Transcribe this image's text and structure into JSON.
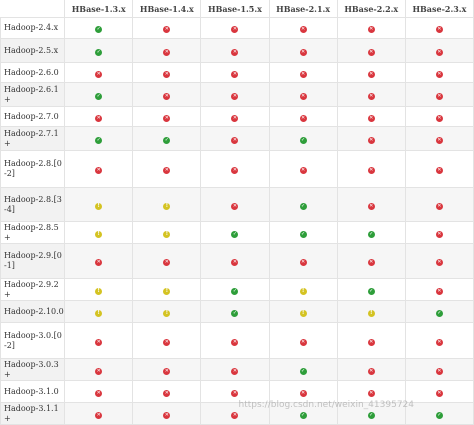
{
  "colors": {
    "supported": "#2e9e3a",
    "not_supported": "#d9363e",
    "not_tested": "#d4c322"
  },
  "status_icons": {
    "S": "check-circle-icon",
    "X": "x-circle-icon",
    "NT": "exclamation-circle-icon"
  },
  "header": [
    "",
    "HBase-1.3.x",
    "HBase-1.4.x",
    "HBase-1.5.x",
    "HBase-2.1.x",
    "HBase-2.2.x",
    "HBase-2.3.x"
  ],
  "rows": [
    {
      "label": "Hadoop-2.4.x",
      "cells": [
        "S",
        "X",
        "X",
        "X",
        "X",
        "X"
      ]
    },
    {
      "label": "Hadoop-2.5.x",
      "cells": [
        "S",
        "X",
        "X",
        "X",
        "X",
        "X"
      ]
    },
    {
      "label": "Hadoop-2.6.0",
      "cells": [
        "X",
        "X",
        "X",
        "X",
        "X",
        "X"
      ]
    },
    {
      "label": "Hadoop-2.6.1+",
      "cells": [
        "S",
        "X",
        "X",
        "X",
        "X",
        "X"
      ]
    },
    {
      "label": "Hadoop-2.7.0",
      "cells": [
        "X",
        "X",
        "X",
        "X",
        "X",
        "X"
      ]
    },
    {
      "label": "Hadoop-2.7.1+",
      "cells": [
        "S",
        "S",
        "X",
        "S",
        "X",
        "X"
      ]
    },
    {
      "label": "Hadoop-2.8.[0-2]",
      "cells": [
        "X",
        "X",
        "X",
        "X",
        "X",
        "X"
      ]
    },
    {
      "label": "Hadoop-2.8.[3-4]",
      "cells": [
        "NT",
        "NT",
        "X",
        "S",
        "X",
        "X"
      ]
    },
    {
      "label": "Hadoop-2.8.5+",
      "cells": [
        "NT",
        "NT",
        "S",
        "S",
        "S",
        "X"
      ]
    },
    {
      "label": "Hadoop-2.9.[0-1]",
      "cells": [
        "X",
        "X",
        "X",
        "X",
        "X",
        "X"
      ]
    },
    {
      "label": "Hadoop-2.9.2+",
      "cells": [
        "NT",
        "NT",
        "S",
        "NT",
        "S",
        "X"
      ]
    },
    {
      "label": "Hadoop-2.10.0",
      "cells": [
        "NT",
        "NT",
        "S",
        "NT",
        "NT",
        "S"
      ]
    },
    {
      "label": "Hadoop-3.0.[0-2]",
      "cells": [
        "X",
        "X",
        "X",
        "X",
        "X",
        "X"
      ]
    },
    {
      "label": "Hadoop-3.0.3+",
      "cells": [
        "X",
        "X",
        "X",
        "S",
        "X",
        "X"
      ]
    },
    {
      "label": "Hadoop-3.1.0",
      "cells": [
        "X",
        "X",
        "X",
        "X",
        "X",
        "X"
      ]
    },
    {
      "label": "Hadoop-3.1.1+",
      "cells": [
        "X",
        "X",
        "X",
        "S",
        "S",
        "S"
      ]
    }
  ],
  "watermark": "https://blog.csdn.net/weixin_41395724"
}
